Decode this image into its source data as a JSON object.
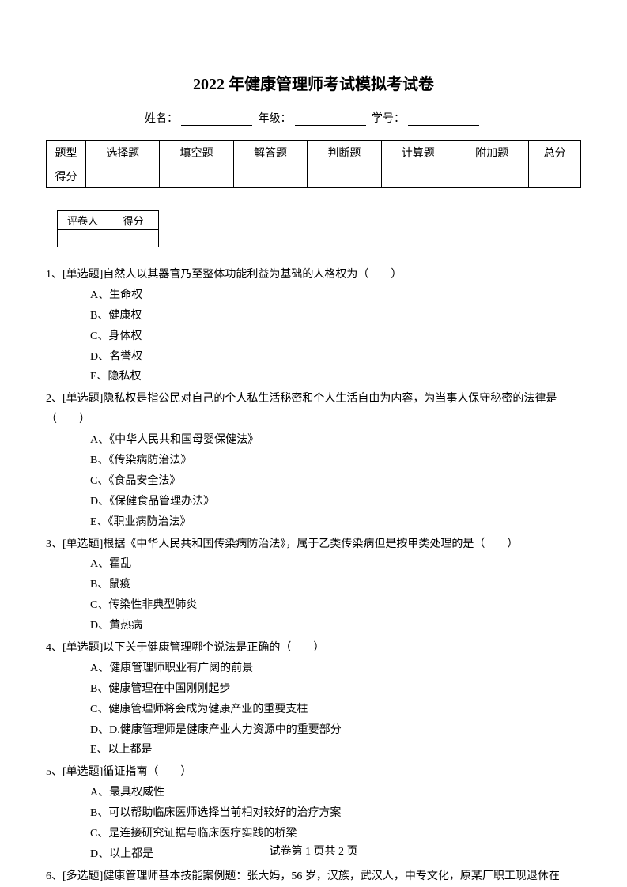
{
  "title": "2022 年健康管理师考试模拟考试卷",
  "info": {
    "name_label": "姓名：",
    "grade_label": "年级：",
    "id_label": "学号："
  },
  "score_table": {
    "row1_label": "题型",
    "headers": [
      "选择题",
      "填空题",
      "解答题",
      "判断题",
      "计算题",
      "附加题",
      "总分"
    ],
    "row2_label": "得分"
  },
  "grader_table": {
    "col1": "评卷人",
    "col2": "得分"
  },
  "questions": [
    {
      "num": "1、",
      "stem": "[单选题]自然人以其器官乃至整体功能利益为基础的人格权为（　　）",
      "options": [
        "A、生命权",
        "B、健康权",
        "C、身体权",
        "D、名誉权",
        "E、隐私权"
      ]
    },
    {
      "num": "2、",
      "stem": "[单选题]隐私权是指公民对自己的个人私生活秘密和个人生活自由为内容，为当事人保守秘密的法律是（　　）",
      "options": [
        "A、《中华人民共和国母婴保健法》",
        "B、《传染病防治法》",
        "C、《食品安全法》",
        "D、《保健食品管理办法》",
        "E、《职业病防治法》"
      ]
    },
    {
      "num": "3、",
      "stem": "[单选题]根据《中华人民共和国传染病防治法》，属于乙类传染病但是按甲类处理的是（　　）",
      "options": [
        "A、霍乱",
        "B、鼠疫",
        "C、传染性非典型肺炎",
        "D、黄热病"
      ]
    },
    {
      "num": "4、",
      "stem": "[单选题]以下关于健康管理哪个说法是正确的（　　）",
      "options": [
        "A、健康管理师职业有广阔的前景",
        "B、健康管理在中国刚刚起步",
        "C、健康管理师将会成为健康产业的重要支柱",
        "D、D.健康管理师是健康产业人力资源中的重要部分",
        "E、以上都是"
      ]
    },
    {
      "num": "5、",
      "stem": "[单选题]循证指南（　　）",
      "options": [
        "A、最具权威性",
        "B、可以帮助临床医师选择当前相对较好的治疗方案",
        "C、是连接研究证据与临床医疗实践的桥梁",
        "D、以上都是"
      ]
    },
    {
      "num": "6、",
      "stem": "[多选题]健康管理师基本技能案例题：张大妈，56 岁，汉族，武汉人，中专文化，原某厂职工现退休在",
      "options": []
    }
  ],
  "footer": "试卷第 1 页共 2 页"
}
